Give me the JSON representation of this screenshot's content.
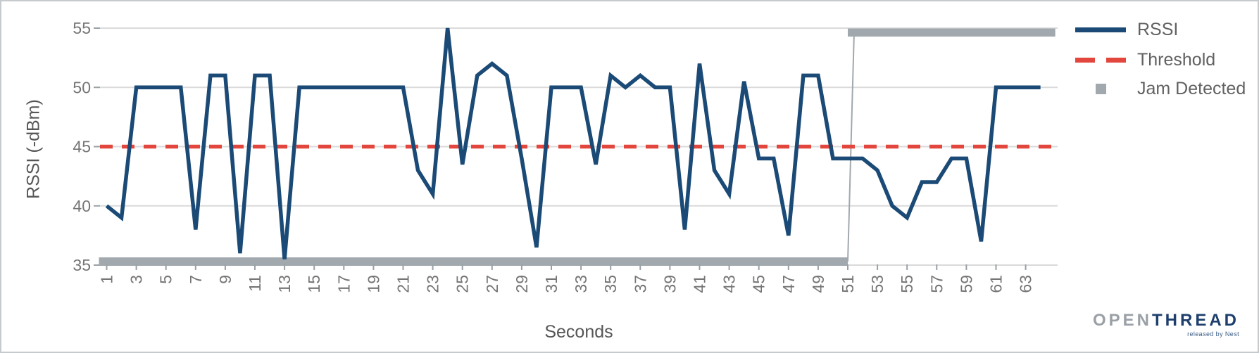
{
  "chart_data": {
    "type": "line",
    "title": "",
    "xlabel": "Seconds",
    "ylabel": "RSSI (-dBm)",
    "ylim": [
      35,
      55
    ],
    "yticks": [
      35,
      40,
      45,
      50,
      55
    ],
    "xticks": [
      1,
      3,
      5,
      7,
      9,
      11,
      13,
      15,
      17,
      19,
      21,
      23,
      25,
      27,
      29,
      31,
      33,
      35,
      37,
      39,
      41,
      43,
      45,
      47,
      49,
      51,
      53,
      55,
      57,
      59,
      61,
      63
    ],
    "x_range": {
      "start": 1,
      "end": 64,
      "step": 1
    },
    "grid": true,
    "legend_position": "right",
    "series": [
      {
        "name": "RSSI",
        "type": "line",
        "x_start": 1,
        "x_step": 1,
        "values": [
          40,
          39,
          50,
          50,
          50,
          50,
          38,
          51,
          51,
          36,
          51,
          51,
          35.5,
          50,
          50,
          50,
          50,
          50,
          50,
          50,
          50,
          43,
          41,
          55,
          43.5,
          51,
          52,
          51,
          44,
          36.5,
          50,
          50,
          50,
          43.5,
          51,
          50,
          51,
          50,
          50,
          38,
          52,
          43,
          41,
          50.5,
          44,
          44,
          37.5,
          51,
          51,
          44,
          44,
          44,
          43,
          40,
          39,
          42,
          42,
          44,
          44,
          37,
          50,
          50,
          50,
          50
        ]
      },
      {
        "name": "Threshold",
        "type": "horizontal-dashed-line",
        "value": 45
      },
      {
        "name": "Jam Detected",
        "type": "step-band",
        "low_value": 35,
        "high_value": 55,
        "low_span_seconds": [
          1,
          51
        ],
        "high_span_seconds": [
          51,
          64
        ]
      }
    ]
  },
  "legend": {
    "items": [
      {
        "label": "RSSI",
        "swatch": "line"
      },
      {
        "label": "Threshold",
        "swatch": "dashes"
      },
      {
        "label": "Jam Detected",
        "swatch": "square"
      }
    ]
  },
  "logo": {
    "brand_prefix": "OPEN",
    "brand_suffix": "THREAD",
    "caption": "released by Nest"
  },
  "colors": {
    "rssi": "#1a4a75",
    "threshold": "#e2463c",
    "jam": "#a1a9ae",
    "grid": "#dadada",
    "tick": "#9aa1a6",
    "tick_label": "#757575",
    "axis_title": "#565656",
    "legend_label": "#616161",
    "logo_open": "#9aa0a6",
    "logo_thread": "#1e3f6d",
    "logo_caption": "#3a5c85",
    "border": "#c6cacd"
  }
}
